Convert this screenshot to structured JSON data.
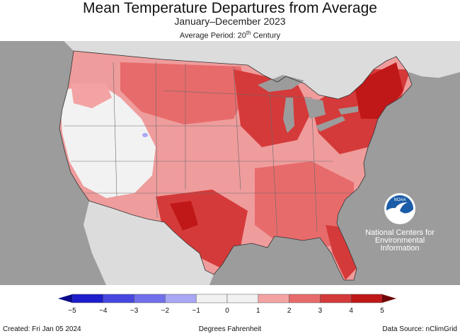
{
  "title": "Mean Temperature Departures from Average",
  "subtitle": "January–December 2023",
  "average_period": {
    "prefix": "Average Period: 20",
    "superscript": "th",
    "suffix": " Century"
  },
  "map": {
    "description_layer": "contiguous-us-temperature-departures",
    "background_color": "#9c9c9c",
    "land_color": "#dcdcdc",
    "water_color": "#9c9c9c"
  },
  "logo": {
    "agency": "NOAA",
    "lines": [
      "National Centers for",
      "Environmental",
      "Information"
    ]
  },
  "legend": {
    "unit_label": "Degrees Fahrenheit",
    "ticks": [
      "−5",
      "−4",
      "−3",
      "−2",
      "−1",
      "0",
      "1",
      "2",
      "3",
      "4",
      "5"
    ],
    "bins": [
      {
        "from": -5,
        "to": -4,
        "color": "#1d1dcc"
      },
      {
        "from": -4,
        "to": -3,
        "color": "#4747e0"
      },
      {
        "from": -3,
        "to": -2,
        "color": "#7070ec"
      },
      {
        "from": -2,
        "to": -1,
        "color": "#a8a8f5"
      },
      {
        "from": -1,
        "to": 0,
        "color": "#f2f2f2"
      },
      {
        "from": 0,
        "to": 1,
        "color": "#f2f2f2"
      },
      {
        "from": 1,
        "to": 2,
        "color": "#f3a3a3"
      },
      {
        "from": 2,
        "to": 3,
        "color": "#e86b6b"
      },
      {
        "from": 3,
        "to": 4,
        "color": "#d53a3a"
      },
      {
        "from": 4,
        "to": 5,
        "color": "#c01818"
      }
    ],
    "low_arrow_color": "#0b0b8a",
    "high_arrow_color": "#6e0808"
  },
  "footer": {
    "created": "Created: Fri Jan 05 2024",
    "source": "Data Source: nClimGrid"
  }
}
